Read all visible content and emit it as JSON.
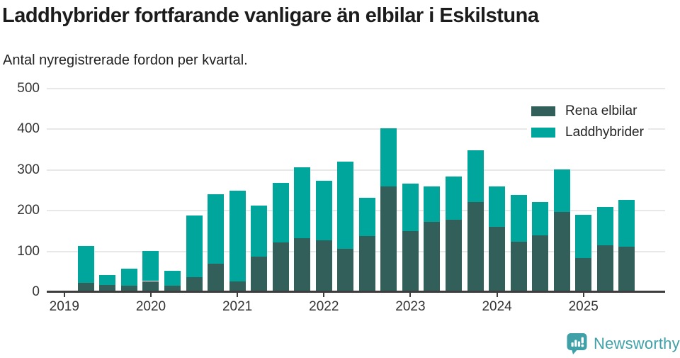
{
  "footer": {
    "brand": "Newsworthy",
    "brand_color": "#3fa1a7",
    "logo_icon": "newsworthy-chart-bubble-icon"
  },
  "chart_data": {
    "type": "bar",
    "stacked": true,
    "title": "Laddhybrider fortfarande vanligare än elbilar i Eskilstuna",
    "subtitle": "Antal nyregistrerade fordon per kvartal.",
    "xlabel": "",
    "ylabel": "",
    "ylim": [
      0,
      500
    ],
    "yticks": [
      0,
      100,
      200,
      300,
      400,
      500
    ],
    "grid": "horizontal",
    "legend_position": "top-right",
    "x_tick_labels": [
      "2019",
      "2020",
      "2021",
      "2022",
      "2023",
      "2024",
      "2025"
    ],
    "categories": [
      "2019 Q1",
      "2019 Q2",
      "2019 Q3",
      "2019 Q4",
      "2020 Q1",
      "2020 Q2",
      "2020 Q3",
      "2020 Q4",
      "2021 Q1",
      "2021 Q2",
      "2021 Q3",
      "2021 Q4",
      "2022 Q1",
      "2022 Q2",
      "2022 Q3",
      "2022 Q4",
      "2023 Q1",
      "2023 Q2",
      "2023 Q3",
      "2023 Q4",
      "2024 Q1",
      "2024 Q2",
      "2024 Q3",
      "2024 Q4",
      "2025 Q1",
      "2025 Q2",
      "2025 Q3"
    ],
    "series": [
      {
        "name": "Rena elbilar",
        "color": "#335f5a",
        "values": [
          0,
          22,
          18,
          16,
          27,
          15,
          37,
          70,
          27,
          87,
          122,
          133,
          127,
          106,
          137,
          260,
          150,
          172,
          177,
          222,
          161,
          124,
          139,
          197,
          83,
          115,
          111
        ]
      },
      {
        "name": "Laddhybrider",
        "color": "#00a59c",
        "values": [
          0,
          91,
          23,
          42,
          74,
          38,
          151,
          170,
          223,
          125,
          146,
          174,
          146,
          215,
          95,
          142,
          116,
          88,
          107,
          126,
          99,
          115,
          82,
          104,
          107,
          94,
          116
        ]
      }
    ]
  }
}
